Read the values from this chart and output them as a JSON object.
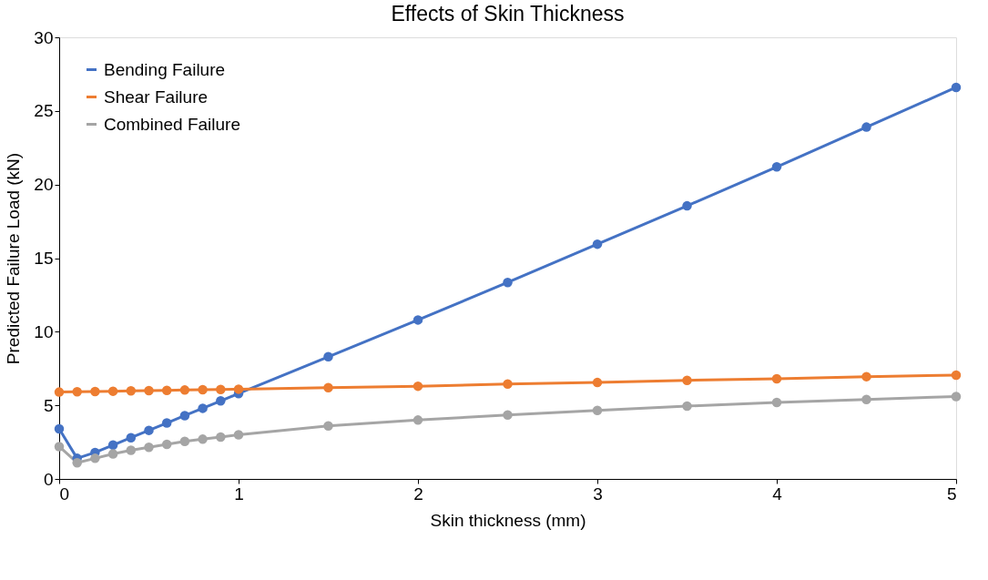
{
  "chart_data": {
    "type": "line",
    "title": "Effects of Skin Thickness",
    "xlabel": "Skin thickness (mm)",
    "ylabel": "Predicted Failure Load (kN)",
    "x": [
      0,
      0.1,
      0.2,
      0.3,
      0.4,
      0.5,
      0.6,
      0.7,
      0.8,
      0.9,
      1,
      1.5,
      2,
      2.5,
      3,
      3.5,
      4,
      4.5,
      5
    ],
    "series": [
      {
        "name": "Bending Failure",
        "color": "#4472c4",
        "values": [
          3.4,
          1.4,
          1.8,
          2.3,
          2.8,
          3.3,
          3.8,
          4.3,
          4.8,
          5.3,
          5.8,
          8.3,
          10.8,
          13.35,
          15.95,
          18.55,
          21.2,
          23.9,
          26.6
        ]
      },
      {
        "name": "Shear Failure",
        "color": "#ed7d31",
        "values": [
          5.9,
          5.92,
          5.94,
          5.96,
          5.98,
          6.0,
          6.02,
          6.04,
          6.06,
          6.08,
          6.1,
          6.2,
          6.3,
          6.45,
          6.55,
          6.7,
          6.8,
          6.95,
          7.05
        ]
      },
      {
        "name": "Combined Failure",
        "color": "#a5a5a5",
        "values": [
          2.2,
          1.1,
          1.4,
          1.7,
          1.95,
          2.15,
          2.35,
          2.55,
          2.7,
          2.85,
          3.0,
          3.6,
          4.0,
          4.35,
          4.65,
          4.95,
          5.2,
          5.4,
          5.6
        ]
      }
    ],
    "xlim": [
      0,
      5
    ],
    "xticks": [
      0,
      1,
      2,
      3,
      4,
      5
    ],
    "ylim": [
      0,
      30
    ],
    "yticks": [
      0,
      5,
      10,
      15,
      20,
      25,
      30
    ],
    "grid": false,
    "legend": "top left",
    "marker": "circle",
    "line_style": "solid"
  }
}
